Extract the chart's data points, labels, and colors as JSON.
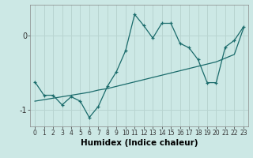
{
  "title": "",
  "xlabel": "Humidex (Indice chaleur)",
  "background_color": "#cce8e5",
  "line_color": "#1a6b6b",
  "grid_color": "#b8d4d0",
  "x_data": [
    0,
    1,
    2,
    3,
    4,
    5,
    6,
    7,
    8,
    9,
    10,
    11,
    12,
    13,
    14,
    15,
    16,
    17,
    18,
    19,
    20,
    21,
    22,
    23
  ],
  "y_curve": [
    -0.62,
    -0.8,
    -0.8,
    -0.93,
    -0.82,
    -0.88,
    -1.1,
    -0.95,
    -0.68,
    -0.48,
    -0.2,
    0.29,
    0.14,
    -0.03,
    0.17,
    0.17,
    -0.1,
    -0.16,
    -0.32,
    -0.63,
    -0.63,
    -0.15,
    -0.06,
    0.12
  ],
  "y_line": [
    -0.88,
    -0.86,
    -0.84,
    -0.82,
    -0.8,
    -0.78,
    -0.76,
    -0.73,
    -0.71,
    -0.68,
    -0.65,
    -0.62,
    -0.59,
    -0.56,
    -0.53,
    -0.5,
    -0.47,
    -0.44,
    -0.41,
    -0.38,
    -0.35,
    -0.3,
    -0.25,
    0.1
  ],
  "yticks": [
    -1,
    0
  ],
  "ylim": [
    -1.22,
    0.42
  ],
  "xlim": [
    -0.5,
    23.5
  ],
  "spine_color": "#888888",
  "tick_color": "#333333",
  "xlabel_fontsize": 7.5,
  "ytick_fontsize": 7,
  "xtick_fontsize": 5.5
}
